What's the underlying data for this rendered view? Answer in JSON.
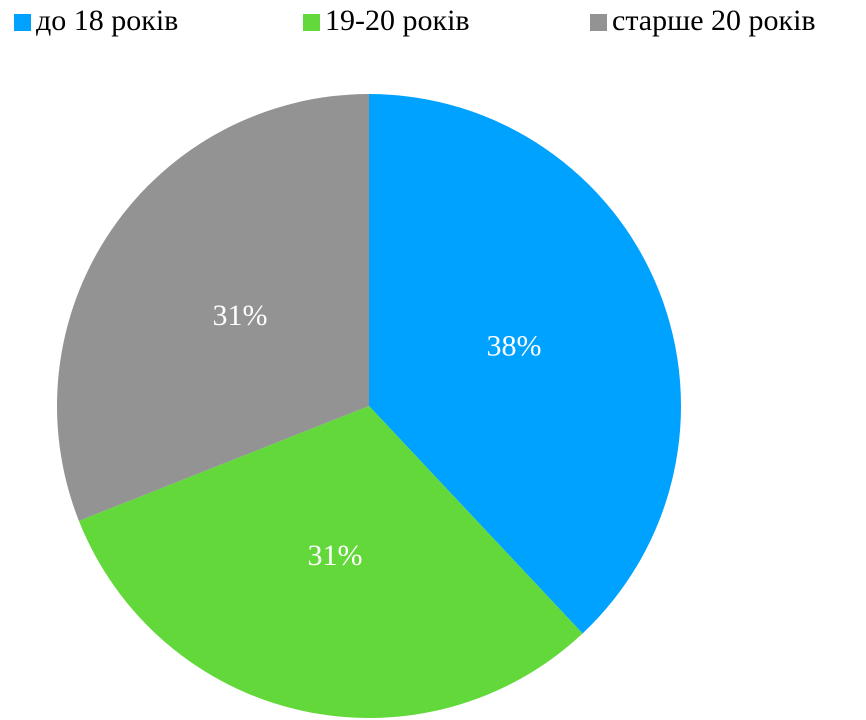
{
  "chart_data": {
    "type": "pie",
    "categories": [
      "до 18 років",
      "19-20 років",
      "старше 20 років"
    ],
    "values": [
      38,
      31,
      31
    ],
    "value_labels": [
      "38%",
      "31%",
      "31%"
    ],
    "colors": [
      "#00a2ff",
      "#62d83a",
      "#939393"
    ],
    "legend": "top"
  }
}
